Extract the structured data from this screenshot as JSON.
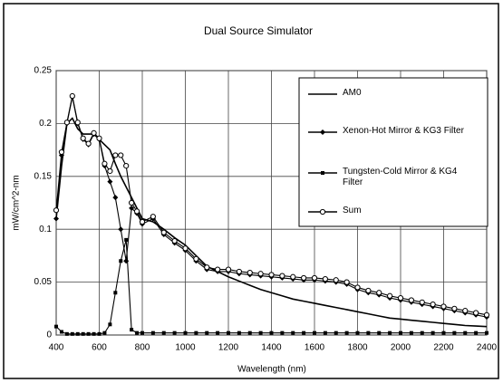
{
  "chart_data": {
    "type": "line",
    "title": "Dual Source Simulator",
    "x_label": "Wavelength (nm)",
    "y_label": "mW/cm^2-nm",
    "x": [
      400,
      425,
      450,
      475,
      500,
      525,
      550,
      575,
      600,
      625,
      650,
      675,
      700,
      725,
      750,
      775,
      800,
      850,
      900,
      950,
      1000,
      1050,
      1100,
      1150,
      1200,
      1250,
      1300,
      1350,
      1400,
      1450,
      1500,
      1550,
      1600,
      1650,
      1700,
      1750,
      1800,
      1850,
      1900,
      1950,
      2000,
      2050,
      2100,
      2150,
      2200,
      2250,
      2300,
      2350,
      2400
    ],
    "series": [
      {
        "name": "AM0",
        "color": "#000000",
        "marker": "none",
        "values": [
          0.11,
          0.16,
          0.2,
          0.205,
          0.195,
          0.19,
          0.19,
          0.19,
          0.185,
          0.18,
          0.175,
          0.162,
          0.15,
          0.14,
          0.13,
          0.12,
          0.11,
          0.107,
          0.1,
          0.092,
          0.085,
          0.075,
          0.065,
          0.06,
          0.055,
          0.051,
          0.047,
          0.043,
          0.04,
          0.037,
          0.034,
          0.032,
          0.03,
          0.028,
          0.026,
          0.024,
          0.022,
          0.02,
          0.018,
          0.016,
          0.015,
          0.014,
          0.013,
          0.012,
          0.011,
          0.01,
          0.009,
          0.0085,
          0.008
        ]
      },
      {
        "name": "Xenon-Hot Mirror & KG3 Filter",
        "color": "#000000",
        "marker": "diamond",
        "values": [
          0.11,
          0.17,
          0.2,
          0.225,
          0.2,
          0.185,
          0.18,
          0.19,
          0.185,
          0.16,
          0.145,
          0.13,
          0.1,
          0.07,
          0.12,
          0.115,
          0.105,
          0.11,
          0.095,
          0.087,
          0.08,
          0.07,
          0.062,
          0.06,
          0.06,
          0.058,
          0.057,
          0.056,
          0.055,
          0.054,
          0.053,
          0.052,
          0.052,
          0.051,
          0.05,
          0.048,
          0.043,
          0.04,
          0.038,
          0.035,
          0.033,
          0.031,
          0.029,
          0.027,
          0.025,
          0.023,
          0.021,
          0.019,
          0.017
        ]
      },
      {
        "name": "Tungsten-Cold Mirror & KG4 Filter",
        "color": "#000000",
        "marker": "square",
        "values": [
          0.008,
          0.003,
          0.001,
          0.001,
          0.001,
          0.001,
          0.001,
          0.001,
          0.001,
          0.002,
          0.01,
          0.04,
          0.07,
          0.09,
          0.005,
          0.002,
          0.002,
          0.002,
          0.002,
          0.002,
          0.002,
          0.002,
          0.002,
          0.002,
          0.002,
          0.002,
          0.002,
          0.002,
          0.002,
          0.002,
          0.002,
          0.002,
          0.002,
          0.002,
          0.002,
          0.002,
          0.002,
          0.002,
          0.002,
          0.002,
          0.002,
          0.002,
          0.002,
          0.002,
          0.002,
          0.002,
          0.002,
          0.002,
          0.002
        ]
      },
      {
        "name": "Sum",
        "color": "#000000",
        "marker": "circle",
        "values": [
          0.118,
          0.173,
          0.201,
          0.226,
          0.201,
          0.186,
          0.181,
          0.191,
          0.186,
          0.162,
          0.155,
          0.17,
          0.17,
          0.16,
          0.125,
          0.117,
          0.107,
          0.112,
          0.097,
          0.089,
          0.082,
          0.072,
          0.064,
          0.062,
          0.062,
          0.06,
          0.059,
          0.058,
          0.057,
          0.056,
          0.055,
          0.054,
          0.054,
          0.053,
          0.052,
          0.05,
          0.045,
          0.042,
          0.04,
          0.037,
          0.035,
          0.033,
          0.031,
          0.029,
          0.027,
          0.025,
          0.023,
          0.021,
          0.019
        ]
      }
    ],
    "xlim": [
      400,
      2400
    ],
    "xticks": [
      400,
      600,
      800,
      1000,
      1200,
      1400,
      1600,
      1800,
      2000,
      2200,
      2400
    ],
    "ylim": [
      0,
      0.25
    ],
    "yticks": [
      0,
      0.05,
      0.1,
      0.15,
      0.2,
      0.25
    ],
    "grid": true
  }
}
